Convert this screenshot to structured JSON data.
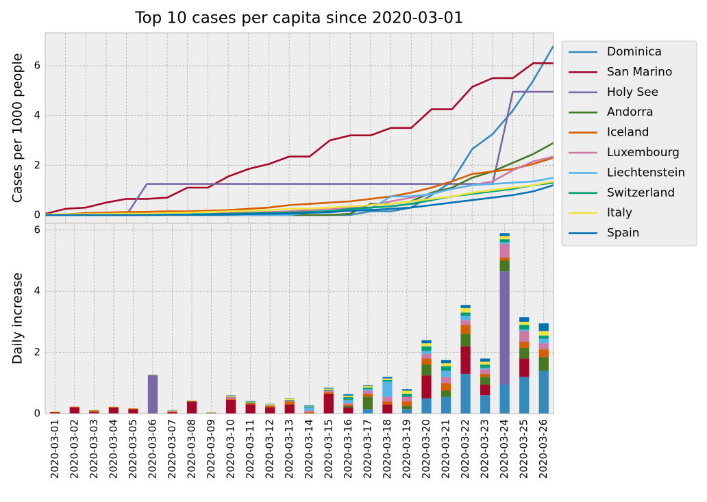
{
  "chart_data": [
    {
      "type": "line",
      "title": "Top 10 cases per capita since 2020-03-01",
      "y_label": "Cases per 1000 people",
      "ylim": [
        -0.33,
        7.32
      ],
      "yticks": [
        0,
        2,
        4,
        6
      ],
      "grid": true,
      "legend": "outside upper right",
      "series": [
        {
          "name": "Dominica",
          "color": "#348ABD",
          "values": [
            0,
            0,
            0,
            0,
            0,
            0,
            0,
            0,
            0,
            0,
            0,
            0,
            0,
            0,
            0,
            0,
            0.15,
            0.15,
            0.3,
            0.8,
            1.35,
            2.65,
            3.25,
            4.2,
            5.4,
            6.8
          ]
        },
        {
          "name": "San Marino",
          "color": "#A60628",
          "values": [
            0.05,
            0.25,
            0.3,
            0.5,
            0.65,
            0.65,
            0.7,
            1.1,
            1.1,
            1.55,
            1.85,
            2.05,
            2.35,
            2.35,
            3.0,
            3.2,
            3.2,
            3.5,
            3.5,
            4.25,
            4.25,
            5.15,
            5.5,
            5.5,
            6.1,
            6.1
          ]
        },
        {
          "name": "Holy See",
          "color": "#7A68A6",
          "values": [
            0,
            0,
            0,
            0,
            0,
            1.25,
            1.25,
            1.25,
            1.25,
            1.25,
            1.25,
            1.25,
            1.25,
            1.25,
            1.25,
            1.25,
            1.25,
            1.25,
            1.25,
            1.25,
            1.25,
            1.25,
            1.25,
            4.95,
            4.95,
            4.95
          ]
        },
        {
          "name": "Andorra",
          "color": "#467821",
          "values": [
            0,
            0,
            0,
            0,
            0,
            0,
            0,
            0,
            0,
            0,
            0,
            0,
            0,
            0,
            0,
            0.05,
            0.45,
            0.45,
            0.55,
            0.9,
            1.1,
            1.5,
            1.75,
            2.1,
            2.45,
            2.9
          ]
        },
        {
          "name": "Iceland",
          "color": "#D55E00",
          "values": [
            0,
            0.03,
            0.08,
            0.1,
            0.12,
            0.13,
            0.15,
            0.15,
            0.17,
            0.2,
            0.25,
            0.3,
            0.4,
            0.45,
            0.5,
            0.55,
            0.65,
            0.75,
            0.9,
            1.1,
            1.35,
            1.65,
            1.75,
            1.85,
            2.05,
            2.3
          ]
        },
        {
          "name": "Luxembourg",
          "color": "#CC79A7",
          "values": [
            0,
            0,
            0,
            0,
            0,
            0,
            0.01,
            0.02,
            0.03,
            0.1,
            0.1,
            0.12,
            0.15,
            0.2,
            0.25,
            0.3,
            0.4,
            0.55,
            0.7,
            0.85,
            1.05,
            1.2,
            1.35,
            1.8,
            2.15,
            2.35
          ]
        },
        {
          "name": "Liechtenstein",
          "color": "#56B4E9",
          "values": [
            0,
            0,
            0,
            0,
            0,
            0,
            0,
            0,
            0,
            0,
            0,
            0,
            0,
            0.1,
            0.1,
            0.2,
            0.25,
            0.75,
            0.75,
            0.85,
            1.05,
            1.2,
            1.25,
            1.3,
            1.35,
            1.5
          ]
        },
        {
          "name": "Switzerland",
          "color": "#009E73",
          "values": [
            0,
            0,
            0.01,
            0.01,
            0.01,
            0.02,
            0.02,
            0.03,
            0.04,
            0.05,
            0.07,
            0.08,
            0.1,
            0.13,
            0.16,
            0.25,
            0.3,
            0.35,
            0.45,
            0.6,
            0.75,
            0.85,
            0.95,
            1.05,
            1.2,
            1.3
          ]
        },
        {
          "name": "Italy",
          "color": "#F0E442",
          "values": [
            0.03,
            0.03,
            0.04,
            0.05,
            0.06,
            0.06,
            0.08,
            0.1,
            0.12,
            0.15,
            0.17,
            0.2,
            0.25,
            0.26,
            0.3,
            0.35,
            0.4,
            0.45,
            0.55,
            0.65,
            0.75,
            0.9,
            1.0,
            1.1,
            1.2,
            1.35
          ]
        },
        {
          "name": "Spain",
          "color": "#0072B2",
          "values": [
            0,
            0,
            0,
            0,
            0,
            0,
            0.01,
            0.01,
            0.01,
            0.02,
            0.04,
            0.05,
            0.06,
            0.09,
            0.12,
            0.17,
            0.2,
            0.25,
            0.3,
            0.4,
            0.5,
            0.6,
            0.7,
            0.8,
            0.95,
            1.2
          ]
        }
      ]
    },
    {
      "type": "bar",
      "stacked": true,
      "y_label": "Daily increase",
      "categories": [
        "2020-03-01",
        "2020-03-02",
        "2020-03-03",
        "2020-03-04",
        "2020-03-05",
        "2020-03-06",
        "2020-03-07",
        "2020-03-08",
        "2020-03-09",
        "2020-03-10",
        "2020-03-11",
        "2020-03-12",
        "2020-03-13",
        "2020-03-14",
        "2020-03-15",
        "2020-03-16",
        "2020-03-17",
        "2020-03-18",
        "2020-03-19",
        "2020-03-20",
        "2020-03-21",
        "2020-03-22",
        "2020-03-23",
        "2020-03-24",
        "2020-03-25",
        "2020-03-26"
      ],
      "ylim": [
        0,
        6.22
      ],
      "yticks": [
        0,
        2,
        4,
        6
      ],
      "grid": true,
      "series": [
        {
          "color": "#348ABD",
          "values": [
            0,
            0,
            0,
            0,
            0,
            0,
            0,
            0,
            0,
            0,
            0,
            0,
            0,
            0,
            0,
            0,
            0.15,
            0,
            0.15,
            0.5,
            0.55,
            1.3,
            0.6,
            0.95,
            1.2,
            1.4
          ]
        },
        {
          "color": "#A60628",
          "values": [
            0.05,
            0.2,
            0.05,
            0.2,
            0.15,
            0,
            0.05,
            0.4,
            0,
            0.45,
            0.3,
            0.2,
            0.3,
            0,
            0.65,
            0.2,
            0,
            0.3,
            0,
            0.75,
            0,
            0.9,
            0.35,
            0,
            0.6,
            0
          ]
        },
        {
          "color": "#7A68A6",
          "values": [
            0,
            0,
            0,
            0,
            0,
            1.25,
            0,
            0,
            0,
            0,
            0,
            0,
            0,
            0,
            0,
            0,
            0,
            0,
            0,
            0,
            0,
            0,
            0,
            3.7,
            0,
            0
          ]
        },
        {
          "color": "#467821",
          "values": [
            0,
            0,
            0,
            0,
            0,
            0,
            0,
            0,
            0,
            0,
            0,
            0,
            0,
            0,
            0,
            0.05,
            0.4,
            0,
            0.1,
            0.35,
            0.2,
            0.4,
            0.25,
            0.35,
            0.35,
            0.45
          ]
        },
        {
          "color": "#D55E00",
          "values": [
            0,
            0.03,
            0.05,
            0.02,
            0.02,
            0.01,
            0.02,
            0,
            0.02,
            0.03,
            0.05,
            0.05,
            0.1,
            0.05,
            0.05,
            0.05,
            0.1,
            0.1,
            0.15,
            0.2,
            0.25,
            0.3,
            0.1,
            0.1,
            0.2,
            0.25
          ]
        },
        {
          "color": "#CC79A7",
          "values": [
            0,
            0,
            0,
            0,
            0,
            0,
            0.01,
            0.01,
            0.01,
            0.07,
            0,
            0.02,
            0.03,
            0.05,
            0.05,
            0.05,
            0.1,
            0.15,
            0.15,
            0.15,
            0.2,
            0.15,
            0.15,
            0.45,
            0.35,
            0.2
          ]
        },
        {
          "color": "#56B4E9",
          "values": [
            0,
            0,
            0,
            0,
            0,
            0,
            0,
            0,
            0,
            0,
            0,
            0,
            0,
            0.1,
            0,
            0.1,
            0.05,
            0.5,
            0,
            0.1,
            0.2,
            0.15,
            0.05,
            0.05,
            0.05,
            0.15
          ]
        },
        {
          "color": "#009E73",
          "values": [
            0,
            0,
            0.01,
            0,
            0,
            0.01,
            0,
            0.01,
            0.01,
            0.01,
            0.02,
            0.01,
            0.02,
            0.03,
            0.03,
            0.09,
            0.05,
            0.05,
            0.1,
            0.15,
            0.15,
            0.1,
            0.1,
            0.1,
            0.15,
            0.1
          ]
        },
        {
          "color": "#F0E442",
          "values": [
            0.03,
            0,
            0.01,
            0.01,
            0.01,
            0,
            0.02,
            0.02,
            0.02,
            0.03,
            0.02,
            0.03,
            0.05,
            0.01,
            0.04,
            0.05,
            0.05,
            0.05,
            0.1,
            0.1,
            0.1,
            0.15,
            0.1,
            0.1,
            0.1,
            0.15
          ]
        },
        {
          "color": "#0072B2",
          "values": [
            0,
            0,
            0,
            0,
            0,
            0,
            0.01,
            0,
            0,
            0.01,
            0.02,
            0.01,
            0.01,
            0.03,
            0.03,
            0.05,
            0.03,
            0.05,
            0.05,
            0.1,
            0.1,
            0.1,
            0.1,
            0.1,
            0.15,
            0.25
          ]
        }
      ]
    }
  ]
}
